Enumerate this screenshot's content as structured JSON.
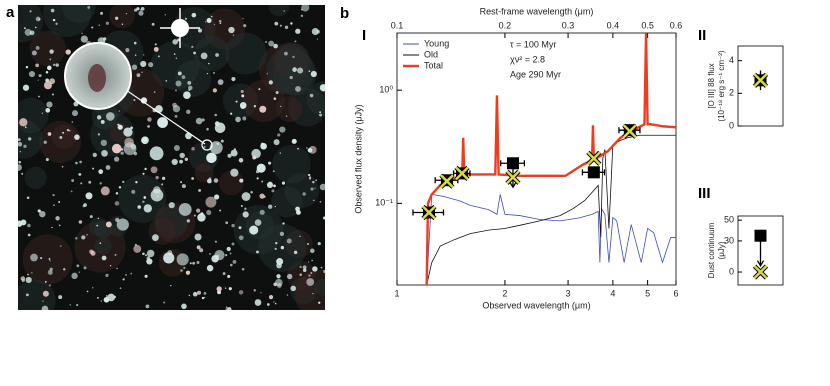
{
  "panel_labels": [
    "a",
    "b"
  ],
  "chart_data": [
    {
      "type": "line",
      "label": "I",
      "xlabel": "Observed wavelength (μm)",
      "ylabel": "Observed flux density (μJy)",
      "x2label": "Rest-frame wavelength (μm)",
      "xlog": true,
      "ylog": true,
      "xlim": [
        1,
        6
      ],
      "xticks": [
        1,
        2,
        3,
        4,
        5,
        6
      ],
      "x2lim": [
        0.1,
        0.6
      ],
      "x2ticks": [
        0.1,
        0.2,
        0.3,
        0.4,
        0.5,
        0.6
      ],
      "ylim": [
        0.019,
        3.2
      ],
      "yticks": [
        {
          "value": 1,
          "label": "10⁰"
        },
        {
          "value": 0.1,
          "label": "10⁻¹"
        }
      ],
      "legend": "upper left",
      "annotations": [
        "τ = 100 Myr",
        "χν² = 2.8",
        "Age 290 Myr"
      ],
      "series": [
        {
          "name": "Young",
          "color": "#3b4cc0",
          "x": [
            1.21,
            1.25,
            1.35,
            1.5,
            1.6,
            1.8,
            1.9,
            1.94,
            2.0,
            2.2,
            2.5,
            2.85,
            3.2,
            3.5,
            3.64,
            3.68,
            3.72,
            3.8,
            3.9,
            4.0,
            4.1,
            4.3,
            4.5,
            4.8,
            5.0,
            5.2,
            5.5,
            5.8,
            6.0
          ],
          "values": [
            0.019,
            0.12,
            0.115,
            0.105,
            0.096,
            0.088,
            0.08,
            0.12,
            0.08,
            0.078,
            0.072,
            0.07,
            0.074,
            0.08,
            0.085,
            0.03,
            0.09,
            0.08,
            0.03,
            0.075,
            0.07,
            0.03,
            0.065,
            0.03,
            0.06,
            0.055,
            0.03,
            0.05,
            0.05
          ]
        },
        {
          "name": "Old",
          "color": "#111111",
          "x": [
            1.21,
            1.25,
            1.32,
            1.45,
            1.6,
            1.8,
            2.0,
            2.2,
            2.5,
            2.85,
            3.1,
            3.34,
            3.5,
            3.64,
            3.7,
            3.75,
            3.8,
            3.9,
            4.0,
            4.2,
            4.4,
            4.76,
            5.0,
            5.5,
            6.0
          ],
          "values": [
            0.019,
            0.03,
            0.042,
            0.048,
            0.054,
            0.058,
            0.06,
            0.064,
            0.07,
            0.078,
            0.09,
            0.106,
            0.125,
            0.144,
            0.05,
            0.25,
            0.3,
            0.06,
            0.33,
            0.36,
            0.38,
            0.4,
            0.4,
            0.4,
            0.4
          ]
        },
        {
          "name": "Total",
          "color": "#f03c1e",
          "x": [
            1.21,
            1.22,
            1.25,
            1.32,
            1.45,
            1.52,
            1.53,
            1.54,
            1.7,
            1.88,
            1.9,
            1.92,
            2.2,
            2.5,
            2.95,
            3.3,
            3.5,
            3.52,
            3.54,
            3.6,
            3.88,
            4.2,
            4.6,
            4.9,
            4.95,
            5.0,
            5.1,
            5.5,
            6.0
          ],
          "values": [
            0.019,
            0.1,
            0.12,
            0.145,
            0.165,
            0.18,
            0.38,
            0.18,
            0.18,
            0.18,
            0.9,
            0.18,
            0.175,
            0.175,
            0.175,
            0.22,
            0.24,
            0.49,
            0.24,
            0.25,
            0.29,
            0.38,
            0.45,
            0.5,
            3.2,
            0.5,
            0.5,
            0.48,
            0.47
          ]
        }
      ],
      "observed": {
        "color": "#000000",
        "x": [
          1.228,
          1.378,
          1.518,
          2.106,
          3.54,
          4.46
        ],
        "xerr": [
          0.12,
          0.1,
          0.08,
          0.16,
          0.25,
          0.3
        ],
        "values": [
          0.083,
          0.16,
          0.184,
          0.226,
          0.188,
          0.443
        ],
        "upper_limit": [
          false,
          false,
          false,
          true,
          false,
          false
        ]
      },
      "model": {
        "color": "#d8dc3c",
        "x": [
          1.228,
          1.378,
          1.518,
          2.106,
          3.54,
          4.46
        ],
        "values": [
          0.083,
          0.157,
          0.184,
          0.17,
          0.25,
          0.434
        ]
      }
    },
    {
      "type": "scatter",
      "label": "II",
      "ylabel": [
        "[O III] 88 flux",
        "(10⁻¹⁸ erg s⁻¹ cm⁻²)"
      ],
      "ylim": [
        0,
        4.9
      ],
      "yticks": [
        0,
        2,
        4
      ],
      "observed": {
        "color": "#000000",
        "values": [
          2.8
        ],
        "yerr": [
          0.6
        ],
        "upper_limit": [
          false
        ]
      },
      "model": {
        "color": "#d8dc3c",
        "values": [
          2.8
        ]
      }
    },
    {
      "type": "scatter",
      "label": "III",
      "ylabel": [
        "Dust continuum",
        "(μJy)"
      ],
      "ylim": [
        -12.5,
        54
      ],
      "yticks": [
        0,
        30,
        50
      ],
      "observed": {
        "color": "#000000",
        "values": [
          35
        ],
        "upper_limit": [
          true
        ]
      },
      "model": {
        "color": "#d8dc3c",
        "values": [
          0
        ]
      }
    }
  ]
}
